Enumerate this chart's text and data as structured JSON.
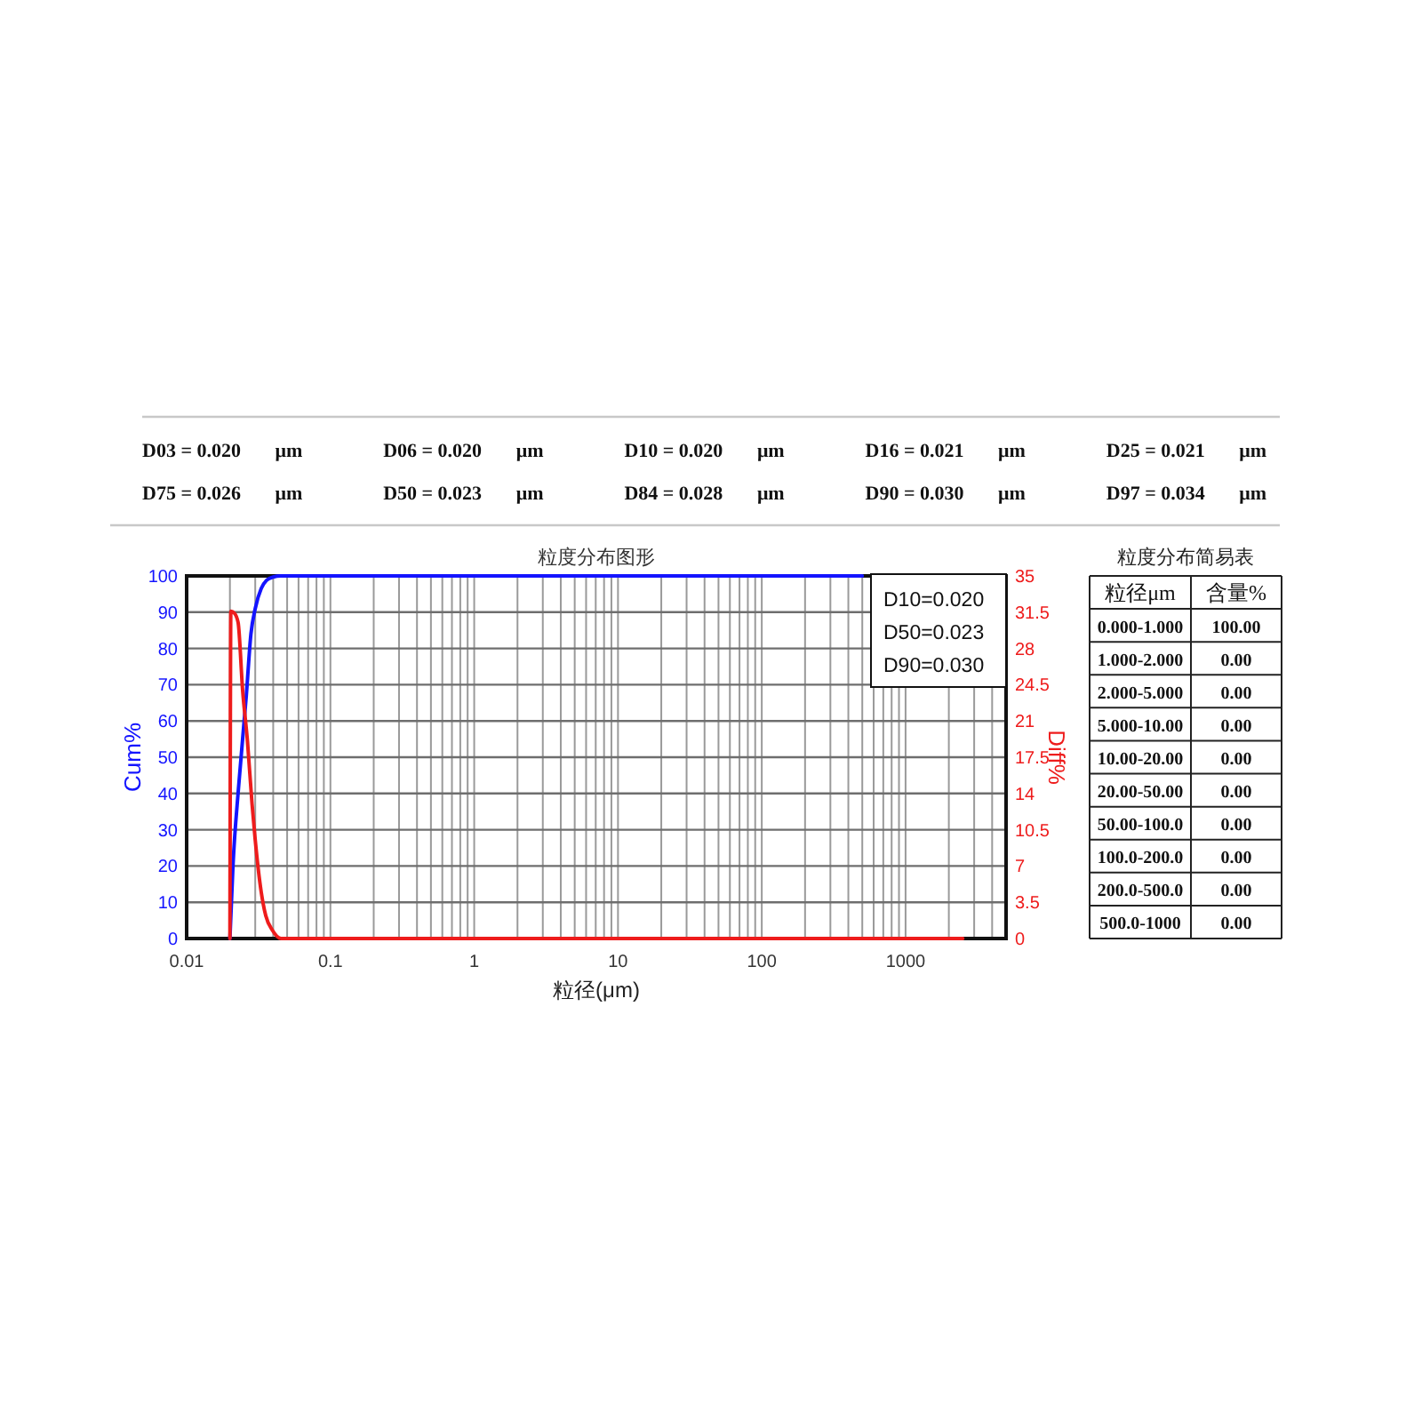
{
  "chart_data": [
    {
      "type": "other",
      "annotations": [
        "D03 = 0.020 μm",
        "D06 = 0.020 μm",
        "D10 = 0.020 μm",
        "D16 = 0.021 μm",
        "D25 = 0.021 μm",
        "D75 = 0.026 μm",
        "D50 = 0.023 μm",
        "D84 = 0.028 μm",
        "D90 = 0.030 μm",
        "D97 = 0.034 μm"
      ]
    },
    {
      "type": "line",
      "title": "粒度分布图形",
      "xlabel": "粒径(μm)",
      "ylabel": "Cum%",
      "y2label": "Diff%",
      "log": "x",
      "grid": true,
      "xlim": [
        0.01,
        5000
      ],
      "xticks": [
        0.01,
        {
          "value": 0.02,
          "label": null
        },
        {
          "value": 0.03,
          "label": null
        },
        {
          "value": 0.04,
          "label": null
        },
        {
          "value": 0.05,
          "label": null
        },
        {
          "value": 0.06,
          "label": null
        },
        {
          "value": 0.07,
          "label": null
        },
        {
          "value": 0.08,
          "label": null
        },
        {
          "value": 0.09,
          "label": null
        },
        0.1,
        {
          "value": 0.2,
          "label": null
        },
        {
          "value": 0.3,
          "label": null
        },
        {
          "value": 0.4,
          "label": null
        },
        {
          "value": 0.5,
          "label": null
        },
        {
          "value": 0.6,
          "label": null
        },
        {
          "value": 0.7,
          "label": null
        },
        {
          "value": 0.8,
          "label": null
        },
        {
          "value": 0.9,
          "label": null
        },
        1,
        {
          "value": 2,
          "label": null
        },
        {
          "value": 3,
          "label": null
        },
        {
          "value": 4,
          "label": null
        },
        {
          "value": 5,
          "label": null
        },
        {
          "value": 6,
          "label": null
        },
        {
          "value": 7,
          "label": null
        },
        {
          "value": 8,
          "label": null
        },
        {
          "value": 9,
          "label": null
        },
        10,
        {
          "value": 20,
          "label": null
        },
        {
          "value": 30,
          "label": null
        },
        {
          "value": 40,
          "label": null
        },
        {
          "value": 50,
          "label": null
        },
        {
          "value": 60,
          "label": null
        },
        {
          "value": 70,
          "label": null
        },
        {
          "value": 80,
          "label": null
        },
        {
          "value": 90,
          "label": null
        },
        100,
        {
          "value": 200,
          "label": null
        },
        {
          "value": 300,
          "label": null
        },
        {
          "value": 400,
          "label": null
        },
        {
          "value": 500,
          "label": null
        },
        {
          "value": 600,
          "label": null
        },
        {
          "value": 700,
          "label": null
        },
        {
          "value": 800,
          "label": null
        },
        {
          "value": 900,
          "label": null
        },
        1000,
        {
          "value": 2000,
          "label": null
        },
        {
          "value": 3000,
          "label": null
        },
        {
          "value": 4000,
          "label": null
        }
      ],
      "ylim": [
        0,
        100
      ],
      "yticks": [
        0,
        10,
        20,
        30,
        40,
        50,
        60,
        70,
        80,
        90,
        100
      ],
      "y2lim": [
        0,
        35
      ],
      "y2ticks": [
        0,
        3.5,
        7,
        10.5,
        14,
        17.5,
        21,
        24.5,
        28,
        31.5,
        35
      ],
      "annotations": [
        "D10=0.020",
        "D50=0.023",
        "D90=0.030"
      ],
      "series": [
        {
          "color": "#1414ff",
          "x": [
            0.02,
            0.021,
            0.023,
            0.026,
            0.028,
            0.03,
            0.033,
            0.036,
            0.04,
            0.045,
            500
          ],
          "values": [
            0,
            20,
            42,
            67,
            84,
            91,
            96.5,
            98.8,
            99.7,
            100,
            100
          ]
        },
        {
          "color": "#ee1c1c",
          "axis": "y2",
          "x": [
            0.02,
            0.0203,
            0.0215,
            0.0228,
            0.0245,
            0.0265,
            0.0285,
            0.03,
            0.033,
            0.0355,
            0.0395,
            0.0455,
            2500
          ],
          "values": [
            0,
            31.6,
            31.4,
            30.5,
            24,
            19,
            13,
            9.5,
            4.5,
            2.2,
            0.8,
            0,
            0
          ]
        }
      ]
    },
    {
      "type": "other",
      "title": "粒度分布简易表",
      "annotations": [
        "粒径μm",
        "含量%",
        "0.000-1.000",
        "100.00",
        "1.000-2.000",
        "0.00",
        "2.000-5.000",
        "0.00",
        "5.000-10.00",
        "0.00",
        "10.00-20.00",
        "0.00",
        "20.00-50.00",
        "0.00",
        "50.00-100.0",
        "0.00",
        "100.0-200.0",
        "0.00",
        "200.0-500.0",
        "0.00",
        "500.0-1000",
        "0.00"
      ]
    }
  ]
}
